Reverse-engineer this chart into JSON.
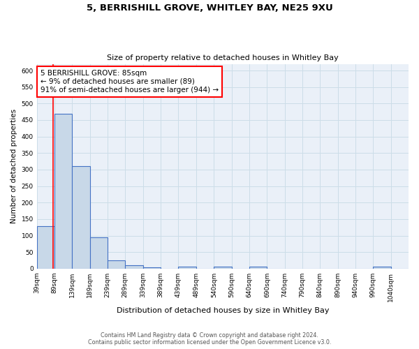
{
  "title1": "5, BERRISHILL GROVE, WHITLEY BAY, NE25 9XU",
  "title2": "Size of property relative to detached houses in Whitley Bay",
  "xlabel": "Distribution of detached houses by size in Whitley Bay",
  "ylabel": "Number of detached properties",
  "footer1": "Contains HM Land Registry data © Crown copyright and database right 2024.",
  "footer2": "Contains public sector information licensed under the Open Government Licence v3.0.",
  "bin_labels": [
    "39sqm",
    "89sqm",
    "139sqm",
    "189sqm",
    "239sqm",
    "289sqm",
    "339sqm",
    "389sqm",
    "439sqm",
    "489sqm",
    "540sqm",
    "590sqm",
    "640sqm",
    "690sqm",
    "740sqm",
    "790sqm",
    "840sqm",
    "890sqm",
    "940sqm",
    "990sqm",
    "1040sqm"
  ],
  "bar_values": [
    128,
    470,
    310,
    95,
    25,
    10,
    4,
    0,
    5,
    0,
    6,
    0,
    5,
    0,
    0,
    0,
    0,
    0,
    0,
    5,
    0
  ],
  "bar_color": "#c8d8e8",
  "bar_edge_color": "#4472c4",
  "red_line_x": 85,
  "ylim": [
    0,
    620
  ],
  "yticks": [
    0,
    50,
    100,
    150,
    200,
    250,
    300,
    350,
    400,
    450,
    500,
    550,
    600
  ],
  "annotation_text": "5 BERRISHILL GROVE: 85sqm\n← 9% of detached houses are smaller (89)\n91% of semi-detached houses are larger (944) →",
  "annotation_box_color": "white",
  "annotation_box_edge_color": "red",
  "bg_color": "white",
  "grid_color": "#ccdde8",
  "bin_edges": [
    39,
    89,
    139,
    189,
    239,
    289,
    339,
    389,
    439,
    489,
    540,
    590,
    640,
    690,
    740,
    790,
    840,
    890,
    940,
    990,
    1040,
    1090
  ]
}
